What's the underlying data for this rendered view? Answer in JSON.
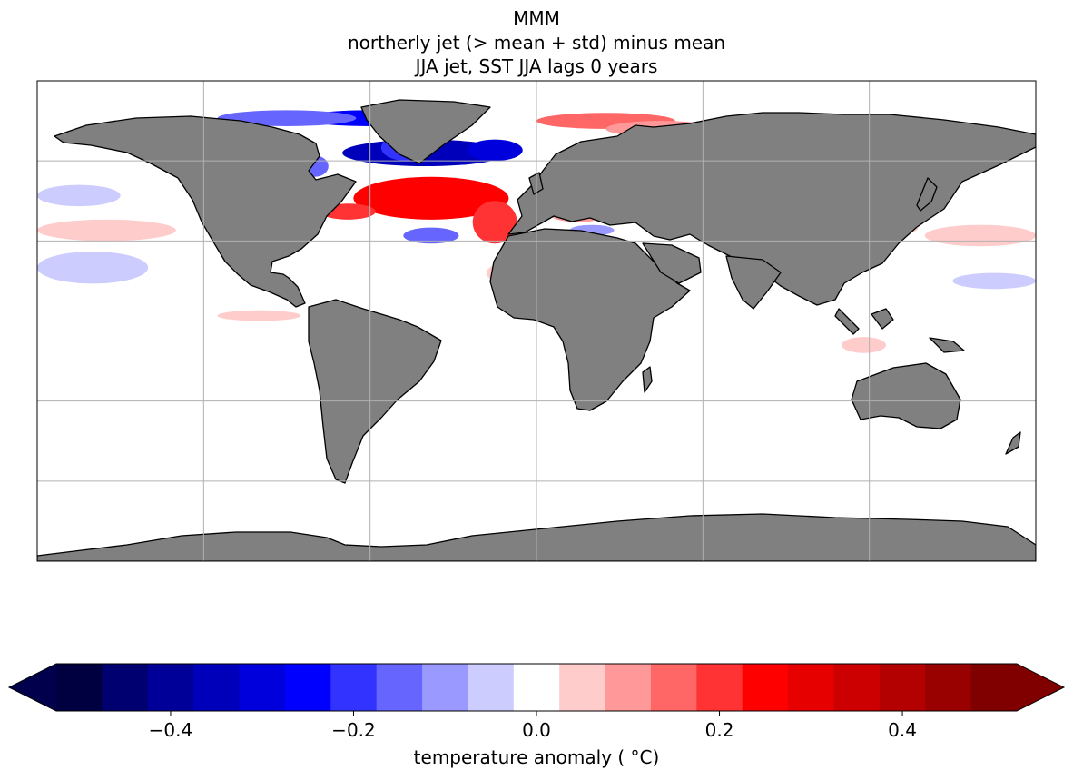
{
  "titles": {
    "line1": "MMM",
    "line2": "northerly jet (> mean + std) minus mean",
    "line3": "JJA jet, SST JJA lags 0 years"
  },
  "colors": {
    "land": "#808080",
    "ocean": "#ffffff",
    "grid": "#b0b0b0",
    "coast": "#000000"
  },
  "chart_data": {
    "type": "heatmap",
    "projection": "PlateCarree",
    "extent": {
      "lon": [
        -180,
        180
      ],
      "lat": [
        -90,
        90
      ]
    },
    "grid_lines": {
      "lon": [
        -120,
        -60,
        0,
        60,
        120
      ],
      "lat": [
        -60,
        -30,
        0,
        30,
        60
      ]
    },
    "colorbar": {
      "label": "temperature anomaly ( °C)",
      "ticks": [
        -0.4,
        -0.2,
        0.0,
        0.2,
        0.4
      ],
      "tick_labels": [
        "−0.4",
        "−0.2",
        "0.0",
        "0.2",
        "0.4"
      ],
      "range": [
        -0.525,
        0.525
      ],
      "extend": "both",
      "levels": [
        -0.525,
        -0.475,
        -0.425,
        -0.375,
        -0.325,
        -0.275,
        -0.225,
        -0.175,
        -0.125,
        -0.075,
        -0.025,
        0.025,
        0.075,
        0.125,
        0.175,
        0.225,
        0.275,
        0.325,
        0.375,
        0.425,
        0.475,
        0.525
      ],
      "bin_colors": [
        "#000040",
        "#000070",
        "#000099",
        "#0000bb",
        "#0000dd",
        "#0000ff",
        "#3333ff",
        "#6666ff",
        "#9999ff",
        "#ccccff",
        "#ffffff",
        "#ffcccc",
        "#ff9999",
        "#ff6666",
        "#ff3333",
        "#ff0000",
        "#e60000",
        "#cc0000",
        "#b30000",
        "#990000",
        "#800000"
      ],
      "under_color": "#00004c",
      "over_color": "#800000"
    },
    "anomaly_regions": [
      {
        "lon": -35,
        "lat": 48,
        "rlon": 14,
        "rlat": 4,
        "value": 0.5
      },
      {
        "lon": -38,
        "lat": 46,
        "rlon": 28,
        "rlat": 8,
        "value": 0.25
      },
      {
        "lon": -68,
        "lat": 41,
        "rlon": 10,
        "rlat": 3,
        "value": 0.2
      },
      {
        "lon": -15,
        "lat": 37,
        "rlon": 8,
        "rlat": 8,
        "value": 0.2
      },
      {
        "lon": -40,
        "lat": 63,
        "rlon": 30,
        "rlat": 5,
        "value": -0.35
      },
      {
        "lon": -15,
        "lat": 64,
        "rlon": 10,
        "rlat": 4,
        "value": -0.3
      },
      {
        "lon": -60,
        "lat": 76,
        "rlon": 25,
        "rlat": 3,
        "value": -0.25
      },
      {
        "lon": -90,
        "lat": 76,
        "rlon": 25,
        "rlat": 3,
        "value": -0.15
      },
      {
        "lon": -47,
        "lat": 65,
        "rlon": 9,
        "rlat": 5,
        "value": -0.2
      },
      {
        "lon": -80,
        "lat": 58,
        "rlon": 5,
        "rlat": 4,
        "value": -0.15
      },
      {
        "lon": -92,
        "lat": 58,
        "rlon": 5,
        "rlat": 4,
        "value": 0.15
      },
      {
        "lon": 25,
        "lat": 75,
        "rlon": 25,
        "rlat": 3,
        "value": 0.15
      },
      {
        "lon": 45,
        "lat": 72,
        "rlon": 20,
        "rlat": 3,
        "value": 0.1
      },
      {
        "lon": -38,
        "lat": 32,
        "rlon": 10,
        "rlat": 3,
        "value": -0.15
      },
      {
        "lon": 15,
        "lat": 40,
        "rlon": 10,
        "rlat": 3,
        "value": 0.08
      },
      {
        "lon": 20,
        "lat": 34,
        "rlon": 8,
        "rlat": 2,
        "value": -0.1
      },
      {
        "lon": 33,
        "lat": 42,
        "rlon": 7,
        "rlat": 3,
        "value": -0.1
      },
      {
        "lon": -155,
        "lat": 34,
        "rlon": 25,
        "rlat": 4,
        "value": 0.05
      },
      {
        "lon": -160,
        "lat": 20,
        "rlon": 20,
        "rlat": 6,
        "value": -0.05
      },
      {
        "lon": -165,
        "lat": 47,
        "rlon": 15,
        "rlat": 4,
        "value": -0.05
      },
      {
        "lon": 160,
        "lat": 32,
        "rlon": 20,
        "rlat": 4,
        "value": 0.05
      },
      {
        "lon": 165,
        "lat": 15,
        "rlon": 15,
        "rlat": 3,
        "value": -0.05
      },
      {
        "lon": -100,
        "lat": 2,
        "rlon": 15,
        "rlat": 2,
        "value": 0.05
      },
      {
        "lon": -10,
        "lat": 18,
        "rlon": 8,
        "rlat": 4,
        "value": 0.05
      },
      {
        "lon": 118,
        "lat": -9,
        "rlon": 8,
        "rlat": 3,
        "value": 0.05
      },
      {
        "lon": 130,
        "lat": 36,
        "rlon": 8,
        "rlat": 4,
        "value": 0.05
      }
    ]
  }
}
